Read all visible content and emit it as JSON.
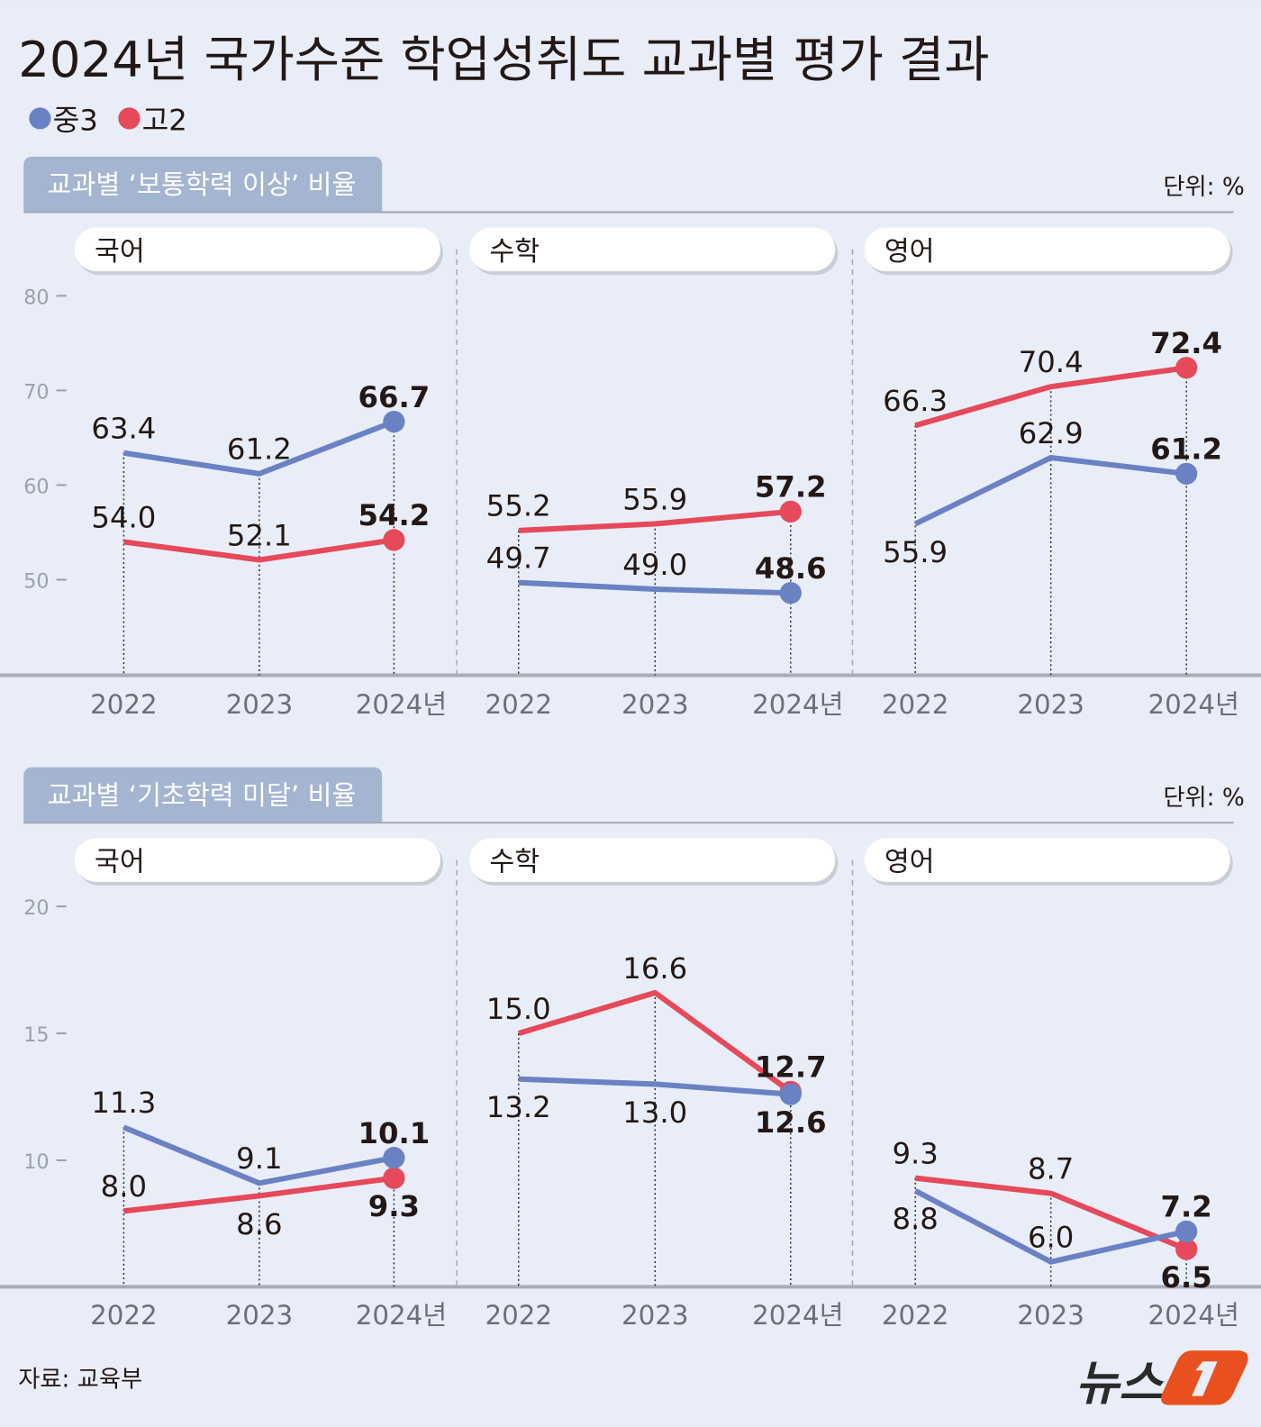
{
  "title": "2024년 국가수준 학업성취도 교과별 평가 결과",
  "legend": [
    {
      "label": "중3",
      "color": "#6a82c4"
    },
    {
      "label": "고2",
      "color": "#e5495a"
    }
  ],
  "colors": {
    "background": "#e9edf8",
    "section_tab": "#a3b5d0",
    "axis": "#a9adb6"
  },
  "source": "자료: 교육부",
  "logo": {
    "text": "뉴스1",
    "color": "#e8501f"
  },
  "sections": [
    {
      "title": "교과별 ‘보통학력 이상’ 비율",
      "unit": "단위: %",
      "yticks": [
        "80",
        "70",
        "60",
        "50"
      ]
    },
    {
      "title": "교과별 ‘기초학력 미달’ 비율",
      "unit": "단위: %",
      "yticks": [
        "20",
        "15",
        "10"
      ]
    }
  ],
  "chart_data": [
    {
      "type": "line",
      "section": 0,
      "title": "국어",
      "categories": [
        "2022",
        "2023",
        "2024년"
      ],
      "ylim": [
        40,
        80
      ],
      "series": [
        {
          "name": "중3",
          "values": [
            63.4,
            61.2,
            66.7
          ],
          "labels": [
            "63.4",
            "61.2",
            "66.7"
          ]
        },
        {
          "name": "고2",
          "values": [
            54.0,
            52.1,
            54.2
          ],
          "labels": [
            "54.0",
            "52.1",
            "54.2"
          ]
        }
      ]
    },
    {
      "type": "line",
      "section": 0,
      "title": "수학",
      "categories": [
        "2022",
        "2023",
        "2024년"
      ],
      "ylim": [
        40,
        80
      ],
      "series": [
        {
          "name": "중3",
          "values": [
            49.7,
            49.0,
            48.6
          ],
          "labels": [
            "49.7",
            "49.0",
            "48.6"
          ]
        },
        {
          "name": "고2",
          "values": [
            55.2,
            55.9,
            57.2
          ],
          "labels": [
            "55.2",
            "55.9",
            "57.2"
          ]
        }
      ]
    },
    {
      "type": "line",
      "section": 0,
      "title": "영어",
      "categories": [
        "2022",
        "2023",
        "2024년"
      ],
      "ylim": [
        40,
        80
      ],
      "series": [
        {
          "name": "중3",
          "values": [
            55.9,
            62.9,
            61.2
          ],
          "labels": [
            "55.9",
            "62.9",
            "61.2"
          ]
        },
        {
          "name": "고2",
          "values": [
            66.3,
            70.4,
            72.4
          ],
          "labels": [
            "66.3",
            "70.4",
            "72.4"
          ]
        }
      ]
    },
    {
      "type": "line",
      "section": 1,
      "title": "국어",
      "categories": [
        "2022",
        "2023",
        "2024년"
      ],
      "ylim": [
        5,
        20
      ],
      "series": [
        {
          "name": "중3",
          "values": [
            11.3,
            9.1,
            10.1
          ],
          "labels": [
            "11.3",
            "9.1",
            "10.1"
          ]
        },
        {
          "name": "고2",
          "values": [
            8.0,
            8.6,
            9.3
          ],
          "labels": [
            "8.0",
            "8.6",
            "9.3"
          ]
        }
      ]
    },
    {
      "type": "line",
      "section": 1,
      "title": "수학",
      "categories": [
        "2022",
        "2023",
        "2024년"
      ],
      "ylim": [
        5,
        20
      ],
      "series": [
        {
          "name": "중3",
          "values": [
            13.2,
            13.0,
            12.6
          ],
          "labels": [
            "13.2",
            "13.0",
            "12.6"
          ]
        },
        {
          "name": "고2",
          "values": [
            15.0,
            16.6,
            12.7
          ],
          "labels": [
            "15.0",
            "16.6",
            "12.7"
          ]
        }
      ]
    },
    {
      "type": "line",
      "section": 1,
      "title": "영어",
      "categories": [
        "2022",
        "2023",
        "2024년"
      ],
      "ylim": [
        5,
        20
      ],
      "series": [
        {
          "name": "중3",
          "values": [
            8.8,
            6.0,
            7.2
          ],
          "labels": [
            "8.8",
            "6.0",
            "7.2"
          ]
        },
        {
          "name": "고2",
          "values": [
            9.3,
            8.7,
            6.5
          ],
          "labels": [
            "9.3",
            "8.7",
            "6.5"
          ]
        }
      ]
    }
  ]
}
